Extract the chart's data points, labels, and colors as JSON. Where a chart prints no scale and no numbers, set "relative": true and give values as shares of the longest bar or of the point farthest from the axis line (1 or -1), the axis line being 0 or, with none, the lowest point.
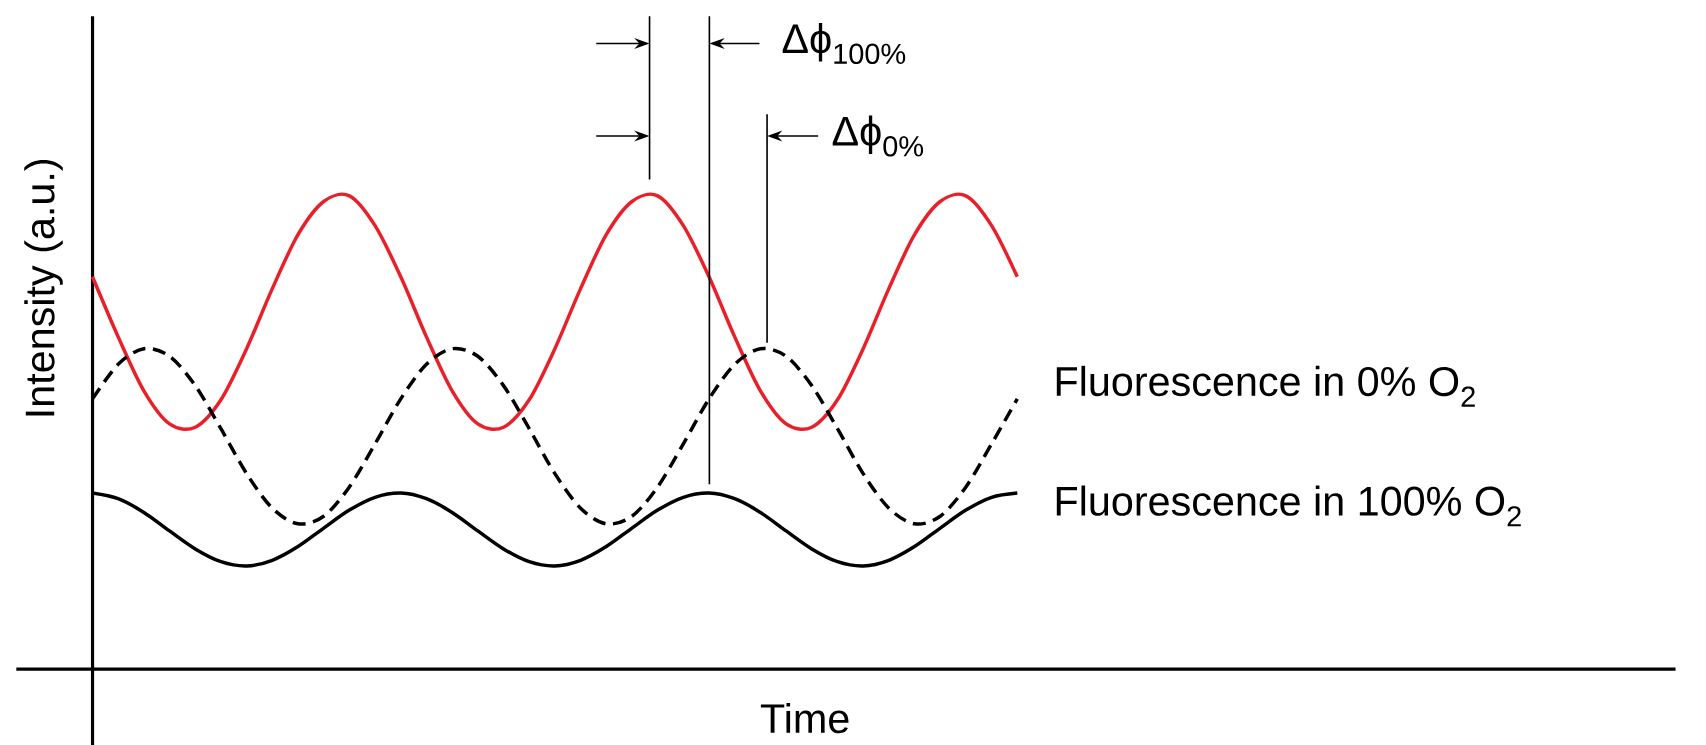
{
  "chart_data": {
    "type": "line",
    "relative": true,
    "xlabel": "Time",
    "ylabel": "Intensity (a.u.)",
    "categories": [
      null,
      null,
      null,
      null,
      null,
      null,
      null,
      null,
      null,
      null,
      null,
      null,
      null,
      null,
      null,
      null,
      null,
      null,
      null,
      null,
      null,
      null,
      null,
      null,
      null,
      null,
      null,
      null,
      null,
      null,
      null,
      null,
      null,
      null,
      null,
      null,
      null
    ],
    "series": [
      {
        "color": "#e8202a",
        "values": [
          0.829,
          0.702,
          0.588,
          0.518,
          0.511,
          0.569,
          0.677,
          0.804,
          0.918,
          0.988,
          1,
          0.937,
          0.829,
          0.702,
          0.588,
          0.518,
          0.511,
          0.569,
          0.677,
          0.804,
          0.918,
          0.988,
          1,
          0.937,
          0.829,
          0.702,
          0.588,
          0.518,
          0.511,
          0.569,
          0.677,
          0.804,
          0.918,
          0.988,
          1,
          0.937,
          0.829
        ]
      },
      {
        "name": "Fluorescence in 0% O$_{2}$",
        "color": "#000000",
        "line_style": "dashed",
        "values": [
          0.571,
          0.644,
          0.677,
          0.661,
          0.599,
          0.508,
          0.413,
          0.34,
          0.307,
          0.323,
          0.385,
          0.476,
          0.571,
          0.644,
          0.677,
          0.661,
          0.599,
          0.508,
          0.413,
          0.34,
          0.307,
          0.323,
          0.385,
          0.476,
          0.571,
          0.644,
          0.677,
          0.661,
          0.599,
          0.508,
          0.413,
          0.34,
          0.307,
          0.323,
          0.385,
          0.476,
          0.571
        ]
      },
      {
        "name": "Fluorescence in 100% O$_{2}$",
        "color": "#000000",
        "values": [
          0.372,
          0.36,
          0.331,
          0.292,
          0.254,
          0.227,
          0.218,
          0.23,
          0.259,
          0.298,
          0.336,
          0.363,
          0.372,
          0.36,
          0.331,
          0.292,
          0.254,
          0.227,
          0.218,
          0.23,
          0.259,
          0.298,
          0.336,
          0.363,
          0.372,
          0.36,
          0.331,
          0.292,
          0.254,
          0.227,
          0.218,
          0.23,
          0.259,
          0.298,
          0.336,
          0.363,
          0.372
        ]
      }
    ],
    "annotations": [
      "Δϕ$_{100%}$",
      "Δϕ$_{0%}$"
    ],
    "legend": false,
    "line_style": "solid",
    "marker": "none"
  }
}
